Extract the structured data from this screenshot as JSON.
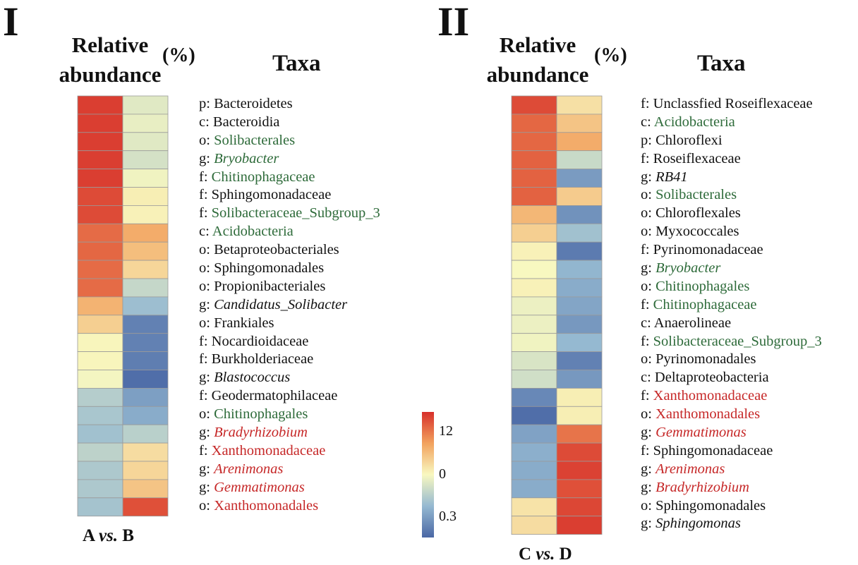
{
  "colors": {
    "green": "#2e6b3a",
    "red": "#c62828",
    "black": "#111111",
    "scale": [
      "#4a67a5",
      "#95b9d1",
      "#f8f8c0",
      "#f2a25e",
      "#d7302b"
    ]
  },
  "colorbar": {
    "ticks": [
      "12",
      "0",
      "0.3"
    ]
  },
  "chart_data": [
    {
      "type": "heatmap",
      "panel_label": "I",
      "title_line1": "Relative",
      "title_line2": "abundance",
      "unit": "(%)",
      "taxa_title": "Taxa",
      "comparison": {
        "a": "A",
        "vs": "vs.",
        "b": "B"
      },
      "columns": [
        "A",
        "B"
      ],
      "color_levels": {
        "min": 0,
        "max": 100,
        "note_scale": "relative abundance color level 0 (low, blue) to 100 (high, red)"
      },
      "rows": [
        {
          "prefix": "p:",
          "name": "Bacteroidetes",
          "italic": false,
          "group": "black",
          "values": [
            97,
            44
          ]
        },
        {
          "prefix": "c:",
          "name": "Bacteroidia",
          "italic": false,
          "group": "black",
          "values": [
            97,
            46
          ]
        },
        {
          "prefix": "o:",
          "name": "Solibacterales",
          "italic": false,
          "group": "green",
          "values": [
            97,
            44
          ]
        },
        {
          "prefix": "g:",
          "name": "Bryobacter",
          "italic": true,
          "group": "green",
          "values": [
            97,
            41
          ]
        },
        {
          "prefix": "f:",
          "name": "Chitinophagaceae",
          "italic": false,
          "group": "green",
          "values": [
            97,
            48
          ]
        },
        {
          "prefix": "f:",
          "name": "Sphingomonadaceae",
          "italic": false,
          "group": "black",
          "values": [
            94,
            53
          ]
        },
        {
          "prefix": "f:",
          "name": "Solibacteraceae_Subgroup_3",
          "italic": false,
          "group": "green",
          "values": [
            94,
            52
          ]
        },
        {
          "prefix": "c:",
          "name": "Acidobacteria",
          "italic": false,
          "group": "green",
          "values": [
            87,
            72
          ]
        },
        {
          "prefix": "o:",
          "name": "Betaproteobacteriales",
          "italic": false,
          "group": "black",
          "values": [
            88,
            67
          ]
        },
        {
          "prefix": "o:",
          "name": "Sphingomonadales",
          "italic": false,
          "group": "black",
          "values": [
            87,
            60
          ]
        },
        {
          "prefix": "o:",
          "name": "Propionibacteriales",
          "italic": false,
          "group": "black",
          "values": [
            87,
            37
          ]
        },
        {
          "prefix": "g:",
          "name": "Candidatus_Solibacter",
          "italic": true,
          "group": "black",
          "values": [
            70,
            27
          ]
        },
        {
          "prefix": "o:",
          "name": "Frankiales",
          "italic": false,
          "group": "black",
          "values": [
            62,
            8
          ]
        },
        {
          "prefix": "f:",
          "name": "Nocardioidaceae",
          "italic": false,
          "group": "black",
          "values": [
            51,
            8
          ]
        },
        {
          "prefix": "f:",
          "name": "Burkholderiaceae",
          "italic": false,
          "group": "black",
          "values": [
            51,
            7
          ]
        },
        {
          "prefix": "g:",
          "name": "Blastococcus",
          "italic": true,
          "group": "black",
          "values": [
            49,
            2
          ]
        },
        {
          "prefix": "f:",
          "name": "Geodermatophilaceae",
          "italic": false,
          "group": "black",
          "values": [
            33,
            17
          ]
        },
        {
          "prefix": "o:",
          "name": "Chitinophagales",
          "italic": false,
          "group": "green",
          "values": [
            30,
            21
          ]
        },
        {
          "prefix": "g:",
          "name": "Bradyrhizobium",
          "italic": true,
          "group": "red",
          "values": [
            28,
            34
          ]
        },
        {
          "prefix": "f:",
          "name": "Xanthomonadaceae",
          "italic": false,
          "group": "red",
          "values": [
            35,
            58
          ]
        },
        {
          "prefix": "g:",
          "name": "Arenimonas",
          "italic": true,
          "group": "red",
          "values": [
            31,
            60
          ]
        },
        {
          "prefix": "g:",
          "name": "Gemmatimonas",
          "italic": true,
          "group": "red",
          "values": [
            31,
            65
          ]
        },
        {
          "prefix": "o:",
          "name": "Xanthomonadales",
          "italic": false,
          "group": "red",
          "values": [
            29,
            93
          ]
        }
      ]
    },
    {
      "type": "heatmap",
      "panel_label": "II",
      "title_line1": "Relative",
      "title_line2": "abundance",
      "unit": "(%)",
      "taxa_title": "Taxa",
      "comparison": {
        "a": "C",
        "vs": "vs.",
        "b": "D"
      },
      "columns": [
        "C",
        "D"
      ],
      "color_levels": {
        "min": 0,
        "max": 100
      },
      "rows": [
        {
          "prefix": "f:",
          "name": "Unclassfied Roseiflexaceae",
          "italic": false,
          "group": "black",
          "values": [
            94,
            57
          ]
        },
        {
          "prefix": "c:",
          "name": "Acidobacteria",
          "italic": false,
          "group": "green",
          "values": [
            88,
            65
          ]
        },
        {
          "prefix": "p:",
          "name": "Chloroflexi",
          "italic": false,
          "group": "black",
          "values": [
            88,
            72
          ]
        },
        {
          "prefix": "f:",
          "name": "Roseiflexaceae",
          "italic": false,
          "group": "black",
          "values": [
            89,
            38
          ]
        },
        {
          "prefix": "g:",
          "name": "RB41",
          "italic": true,
          "group": "black",
          "values": [
            89,
            16
          ]
        },
        {
          "prefix": "o:",
          "name": "Solibacterales",
          "italic": false,
          "group": "green",
          "values": [
            89,
            63
          ]
        },
        {
          "prefix": "o:",
          "name": "Chloroflexales",
          "italic": false,
          "group": "black",
          "values": [
            69,
            13
          ]
        },
        {
          "prefix": "o:",
          "name": "Myxococcales",
          "italic": false,
          "group": "black",
          "values": [
            62,
            28
          ]
        },
        {
          "prefix": "f:",
          "name": "Pyrinomonadaceae",
          "italic": false,
          "group": "black",
          "values": [
            52,
            6
          ]
        },
        {
          "prefix": "g:",
          "name": "Bryobacter",
          "italic": true,
          "group": "green",
          "values": [
            50,
            24
          ]
        },
        {
          "prefix": "o:",
          "name": "Chitinophagales",
          "italic": false,
          "group": "green",
          "values": [
            52,
            21
          ]
        },
        {
          "prefix": "f:",
          "name": "Chitinophagaceae",
          "italic": false,
          "group": "green",
          "values": [
            47,
            19
          ]
        },
        {
          "prefix": "c:",
          "name": "Anaerolineae",
          "italic": false,
          "group": "black",
          "values": [
            47,
            15
          ]
        },
        {
          "prefix": "f:",
          "name": "Solibacteraceae_Subgroup_3",
          "italic": false,
          "group": "green",
          "values": [
            48,
            25
          ]
        },
        {
          "prefix": "o:",
          "name": "Pyrinomonadales",
          "italic": false,
          "group": "black",
          "values": [
            42,
            8
          ]
        },
        {
          "prefix": "c:",
          "name": "Deltaproteobacteria",
          "italic": false,
          "group": "black",
          "values": [
            40,
            15
          ]
        },
        {
          "prefix": "f:",
          "name": "Xanthomonadaceae",
          "italic": false,
          "group": "red",
          "values": [
            10,
            53
          ]
        },
        {
          "prefix": "o:",
          "name": "Xanthomonadales",
          "italic": false,
          "group": "red",
          "values": [
            2,
            53
          ]
        },
        {
          "prefix": "g:",
          "name": "Gemmatimonas",
          "italic": true,
          "group": "red",
          "values": [
            18,
            85
          ]
        },
        {
          "prefix": "f:",
          "name": "Sphingomonadaceae",
          "italic": false,
          "group": "black",
          "values": [
            22,
            94
          ]
        },
        {
          "prefix": "g:",
          "name": "Arenimonas",
          "italic": true,
          "group": "red",
          "values": [
            21,
            96
          ]
        },
        {
          "prefix": "g:",
          "name": "Bradyrhizobium",
          "italic": true,
          "group": "red",
          "values": [
            21,
            93
          ]
        },
        {
          "prefix": "o:",
          "name": "Sphingomonadales",
          "italic": false,
          "group": "black",
          "values": [
            56,
            95
          ]
        },
        {
          "prefix": "g:",
          "name": "Sphingomonas",
          "italic": true,
          "group": "black",
          "values": [
            58,
            97
          ]
        }
      ]
    }
  ]
}
